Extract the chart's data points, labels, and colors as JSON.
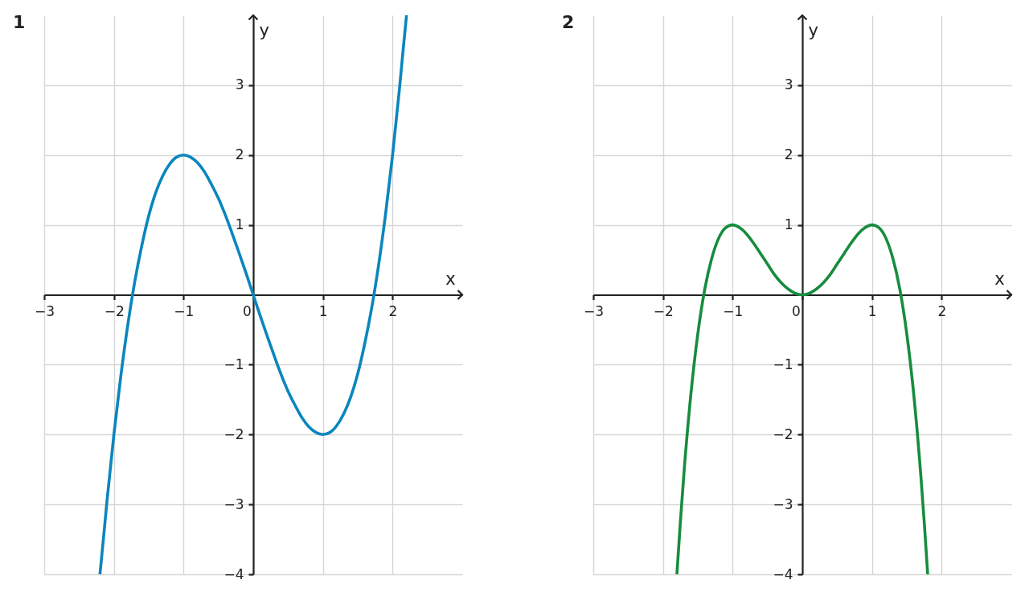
{
  "chart_data": [
    {
      "type": "line",
      "title": "1",
      "xlabel": "x",
      "ylabel": "y",
      "xlim": [
        -3,
        3
      ],
      "ylim": [
        -4,
        4
      ],
      "xticks": [
        -3,
        -2,
        -1,
        0,
        1,
        2
      ],
      "yticks": [
        -4,
        -3,
        -2,
        -1,
        1,
        2,
        3
      ],
      "grid": true,
      "x": [
        -2.2,
        -2.15,
        -2.1,
        -2.0,
        -1.9,
        -1.8,
        -1.7,
        -1.6,
        -1.5,
        -1.4,
        -1.3,
        -1.2,
        -1.1,
        -1.0,
        -0.9,
        -0.8,
        -0.7,
        -0.6,
        -0.5,
        -0.4,
        -0.3,
        -0.2,
        -0.1,
        0,
        0.1,
        0.2,
        0.3,
        0.4,
        0.5,
        0.6,
        0.7,
        0.8,
        0.9,
        1.0,
        1.1,
        1.2,
        1.3,
        1.4,
        1.5,
        1.6,
        1.7,
        1.8,
        1.9,
        2.0,
        2.1,
        2.15,
        2.2
      ],
      "series": [
        {
          "color": "#0a86bd",
          "values": [
            -4.0,
            -3.49,
            -2.96,
            -2.0,
            -1.16,
            -0.43,
            0.19,
            0.7,
            1.13,
            1.46,
            1.7,
            1.87,
            1.97,
            2.0,
            1.97,
            1.89,
            1.76,
            1.58,
            1.38,
            1.14,
            0.87,
            0.59,
            0.3,
            0,
            -0.3,
            -0.59,
            -0.87,
            -1.14,
            -1.38,
            -1.58,
            -1.76,
            -1.89,
            -1.97,
            -2.0,
            -1.97,
            -1.87,
            -1.7,
            -1.46,
            -1.13,
            -0.7,
            -0.19,
            0.43,
            1.16,
            2.0,
            2.96,
            3.49,
            4.0
          ]
        }
      ]
    },
    {
      "type": "line",
      "title": "2",
      "xlabel": "x",
      "ylabel": "y",
      "xlim": [
        -3,
        3
      ],
      "ylim": [
        -4,
        4
      ],
      "xticks": [
        -3,
        -2,
        -1,
        0,
        1,
        2
      ],
      "yticks": [
        -4,
        -3,
        -2,
        -1,
        1,
        2,
        3
      ],
      "grid": true,
      "x": [
        -1.8,
        -1.75,
        -1.7,
        -1.6,
        -1.5,
        -1.4,
        -1.3,
        -1.2,
        -1.1,
        -1.0,
        -0.9,
        -0.8,
        -0.7,
        -0.6,
        -0.5,
        -0.4,
        -0.3,
        -0.2,
        -0.1,
        0,
        0.1,
        0.2,
        0.3,
        0.4,
        0.5,
        0.6,
        0.7,
        0.8,
        0.9,
        1.0,
        1.1,
        1.2,
        1.3,
        1.4,
        1.5,
        1.6,
        1.7,
        1.75,
        1.8
      ],
      "series": [
        {
          "color": "#178c3e",
          "values": [
            -4.0,
            -3.25,
            -2.57,
            -1.43,
            -0.56,
            0.08,
            0.52,
            0.81,
            0.96,
            1.0,
            0.96,
            0.87,
            0.74,
            0.59,
            0.44,
            0.29,
            0.17,
            0.08,
            0.02,
            0,
            0.02,
            0.08,
            0.17,
            0.29,
            0.44,
            0.59,
            0.74,
            0.87,
            0.96,
            1.0,
            0.96,
            0.81,
            0.52,
            0.08,
            -0.56,
            -1.43,
            -2.57,
            -3.25,
            -4.0
          ]
        }
      ]
    }
  ]
}
